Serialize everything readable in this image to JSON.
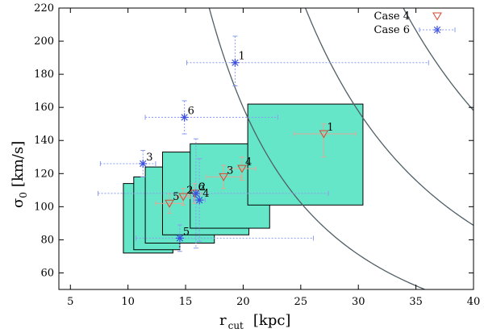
{
  "chart_data": {
    "type": "scatter",
    "title": "",
    "xlabel": "r",
    "xlabel_sub": "cut",
    "xlabel_unit": "[kpc]",
    "ylabel": "σ",
    "ylabel_sub": "0",
    "ylabel_unit": "[km/s]",
    "xlim": [
      4,
      40
    ],
    "ylim": [
      50,
      220
    ],
    "xticks": [
      5,
      10,
      15,
      20,
      25,
      30,
      35,
      40
    ],
    "yticks": [
      60,
      80,
      100,
      120,
      140,
      160,
      180,
      200,
      220
    ],
    "grid": false,
    "legend_position": "top-right",
    "colors": {
      "box_fill": "#66e6c8",
      "box_stroke": "#000000",
      "curve": "#4f5f66",
      "case4": "#d9472e",
      "case4_err": "#e0a898",
      "case6": "#3a4fe0",
      "case6_err": "#8a9cf0"
    },
    "curves": [
      {
        "name": "curve-low",
        "k": 64000
      },
      {
        "name": "curve-mid",
        "k": 142000
      },
      {
        "name": "curve-high",
        "k": 253000
      }
    ],
    "boxes": [
      {
        "x0": 9.6,
        "x1": 13.9,
        "y0": 72,
        "y1": 114
      },
      {
        "x0": 10.5,
        "x1": 14.5,
        "y0": 74,
        "y1": 118
      },
      {
        "x0": 11.5,
        "x1": 17.5,
        "y0": 78,
        "y1": 124
      },
      {
        "x0": 13.0,
        "x1": 20.5,
        "y0": 83,
        "y1": 133
      },
      {
        "x0": 15.4,
        "x1": 22.3,
        "y0": 87,
        "y1": 138
      },
      {
        "x0": 20.4,
        "x1": 30.4,
        "y0": 101,
        "y1": 162
      }
    ],
    "series": [
      {
        "name": "Case 4",
        "marker": "triangle-down",
        "points": [
          {
            "label": "1",
            "x": 27.0,
            "y": 144,
            "xerr": [
              2.6,
              2.8
            ],
            "yerr": [
              14,
              6
            ]
          },
          {
            "label": "2",
            "x": 14.8,
            "y": 106,
            "xerr": [
              0.6,
              0.6
            ],
            "yerr": [
              5,
              5
            ]
          },
          {
            "label": "3",
            "x": 18.3,
            "y": 118,
            "xerr": [
              1.5,
              1.5
            ],
            "yerr": [
              7,
              7
            ]
          },
          {
            "label": "4",
            "x": 19.9,
            "y": 123,
            "xerr": [
              1.2,
              1.2
            ],
            "yerr": [
              7,
              7
            ]
          },
          {
            "label": "5",
            "x": 13.6,
            "y": 102,
            "xerr": [
              1.2,
              1.2
            ],
            "yerr": [
              6,
              6
            ]
          },
          {
            "label": "6",
            "x": 15.8,
            "y": 108,
            "xerr": [
              0.6,
              0.6
            ],
            "yerr": [
              6,
              6
            ]
          }
        ]
      },
      {
        "name": "Case 6",
        "marker": "star",
        "points": [
          {
            "label": "1",
            "x": 19.3,
            "y": 187,
            "xerr": [
              4.2,
              16.8
            ],
            "yerr": [
              14,
              16
            ]
          },
          {
            "label": "3",
            "x": 11.3,
            "y": 126,
            "xerr": [
              3.7,
              1.1
            ],
            "yerr": [
              8,
              8
            ]
          },
          {
            "label": "5",
            "x": 14.5,
            "y": 81,
            "xerr": [
              3.8,
              11.6
            ],
            "yerr": [
              8,
              8
            ]
          },
          {
            "label": "6",
            "x": 14.9,
            "y": 154,
            "xerr": [
              3.4,
              8.1
            ],
            "yerr": [
              10,
              10
            ]
          },
          {
            "label": "2",
            "x": 15.9,
            "y": 108,
            "xerr": [
              8.5,
              11.5
            ],
            "yerr": [
              33,
              33
            ]
          },
          {
            "label": "4",
            "x": 16.2,
            "y": 104,
            "xerr": [
              0.5,
              0.5
            ],
            "yerr": [
              25,
              25
            ]
          }
        ]
      }
    ],
    "legend": [
      "Case 4",
      "Case 6"
    ]
  }
}
